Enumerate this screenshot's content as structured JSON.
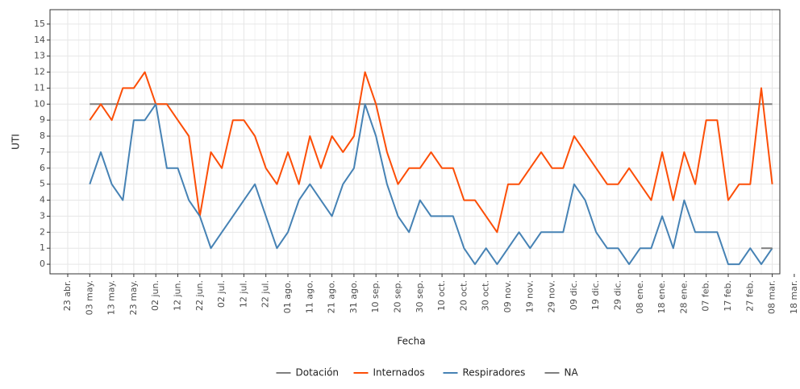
{
  "chart_data": {
    "type": "line",
    "x_label": "Fecha",
    "y_label": "UTI",
    "categories": [
      "23 abr.",
      null,
      "03 may.",
      null,
      "13 may.",
      null,
      "23 may.",
      null,
      "02 jun.",
      null,
      "12 jun.",
      null,
      "22 jun.",
      null,
      "02 jul.",
      null,
      "12 jul.",
      null,
      "22 jul.",
      null,
      "01 ago.",
      null,
      "11 ago.",
      null,
      "21 ago.",
      null,
      "31 ago.",
      null,
      "10 sep.",
      null,
      "20 sep.",
      null,
      "30 sep.",
      null,
      "10 oct.",
      null,
      "20 oct.",
      null,
      "30 oct.",
      null,
      "09 nov.",
      null,
      "19 nov.",
      null,
      "29 nov.",
      null,
      "09 dic.",
      null,
      "19 dic.",
      null,
      "29 dic.",
      null,
      "08 ene.",
      null,
      "18 ene.",
      null,
      "28 ene.",
      null,
      "07 feb.",
      null,
      "17 feb.",
      null,
      "27 feb.",
      null,
      "08 mar.",
      null,
      "18 mar."
    ],
    "series": [
      {
        "name": "Dotación",
        "color": "#7f7f7f",
        "values": [
          null,
          null,
          10,
          10,
          10,
          10,
          10,
          10,
          10,
          10,
          10,
          10,
          10,
          10,
          10,
          10,
          10,
          10,
          10,
          10,
          10,
          10,
          10,
          10,
          10,
          10,
          10,
          10,
          10,
          10,
          10,
          10,
          10,
          10,
          10,
          10,
          10,
          10,
          10,
          10,
          10,
          10,
          10,
          10,
          10,
          10,
          10,
          10,
          10,
          10,
          10,
          10,
          10,
          10,
          10,
          10,
          10,
          10,
          10,
          10,
          10,
          10,
          10,
          10,
          10,
          null,
          null
        ]
      },
      {
        "name": "Internados",
        "color": "#fc4e07",
        "values": [
          null,
          null,
          9,
          10,
          9,
          11,
          11,
          12,
          10,
          10,
          9,
          8,
          3,
          7,
          6,
          9,
          9,
          8,
          6,
          5,
          7,
          5,
          8,
          6,
          8,
          7,
          8,
          12,
          10,
          7,
          5,
          6,
          6,
          7,
          6,
          6,
          4,
          4,
          3,
          2,
          5,
          5,
          6,
          7,
          6,
          6,
          8,
          7,
          6,
          5,
          5,
          6,
          5,
          4,
          7,
          4,
          7,
          5,
          9,
          9,
          4,
          5,
          5,
          11,
          5,
          null,
          null
        ]
      },
      {
        "name": "Respiradores",
        "color": "#4682b4",
        "values": [
          null,
          null,
          5,
          7,
          5,
          4,
          9,
          9,
          10,
          6,
          6,
          4,
          3,
          1,
          2,
          3,
          4,
          5,
          3,
          1,
          2,
          4,
          5,
          4,
          3,
          5,
          6,
          10,
          8,
          5,
          3,
          2,
          4,
          3,
          3,
          3,
          1,
          0,
          1,
          0,
          1,
          2,
          1,
          2,
          2,
          2,
          5,
          4,
          2,
          1,
          1,
          0,
          1,
          1,
          3,
          1,
          4,
          2,
          2,
          2,
          0,
          0,
          1,
          0,
          1,
          null,
          null
        ]
      },
      {
        "name": "NA",
        "color": "#7f7f7f",
        "values": [
          null,
          null,
          null,
          null,
          null,
          null,
          null,
          null,
          null,
          null,
          null,
          null,
          null,
          null,
          null,
          null,
          null,
          null,
          null,
          null,
          null,
          null,
          null,
          null,
          null,
          null,
          null,
          null,
          null,
          null,
          null,
          null,
          null,
          null,
          null,
          null,
          null,
          null,
          null,
          null,
          null,
          null,
          null,
          null,
          null,
          null,
          null,
          null,
          null,
          null,
          null,
          null,
          null,
          null,
          null,
          null,
          null,
          null,
          null,
          null,
          null,
          null,
          null,
          1,
          1,
          null,
          null
        ]
      }
    ],
    "ylim": [
      -0.6,
      15.9
    ],
    "yticks": [
      0,
      1,
      2,
      3,
      4,
      5,
      6,
      7,
      8,
      9,
      10,
      11,
      12,
      13,
      14,
      15
    ],
    "grid": true,
    "legend": "bottom"
  }
}
